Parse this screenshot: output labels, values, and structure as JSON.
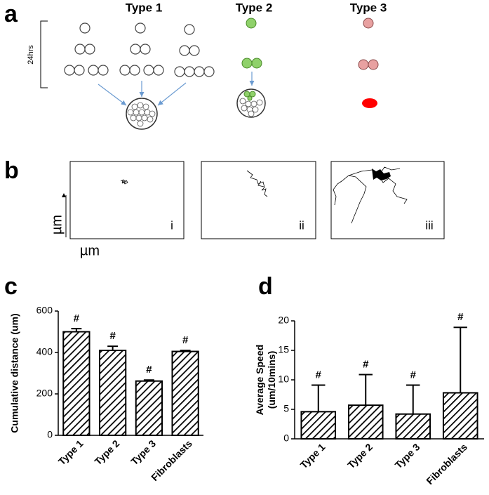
{
  "panel_a": {
    "label": "a",
    "types": [
      "Type 1",
      "Type 2",
      "Type 3"
    ],
    "time_label": "24hrs"
  },
  "panel_b": {
    "label": "b",
    "y_label": "µm",
    "x_label": "µm",
    "subpanels": [
      "i",
      "ii",
      "iii"
    ]
  },
  "panel_c": {
    "label": "c"
  },
  "panel_d": {
    "label": "d"
  },
  "chart_data": [
    {
      "type": "bar",
      "ylabel": [
        "Cumulative distance (um)"
      ],
      "categories": [
        "Type 1",
        "Type 2",
        "Type 3",
        "Fibroblasts"
      ],
      "values": [
        500,
        410,
        262,
        405
      ],
      "errors": [
        15,
        20,
        5,
        5
      ],
      "annotations": [
        "#",
        "#",
        "#",
        "#"
      ],
      "color": "#000000",
      "ylim": [
        0,
        600
      ],
      "yticks": [
        0,
        200,
        400,
        600
      ]
    },
    {
      "type": "bar",
      "ylabel": [
        "Average Speed",
        "(um/10mins)"
      ],
      "categories": [
        "Type 1",
        "Type 2",
        "Type 3",
        "Fibroblasts"
      ],
      "values": [
        4.6,
        5.7,
        4.2,
        7.8
      ],
      "errors": [
        4.5,
        5.2,
        4.9,
        11.1
      ],
      "annotations": [
        "#",
        "#",
        "#",
        "#"
      ],
      "color": "#000000",
      "ylim": [
        0,
        20
      ],
      "yticks": [
        0,
        5,
        10,
        15,
        20
      ]
    }
  ]
}
